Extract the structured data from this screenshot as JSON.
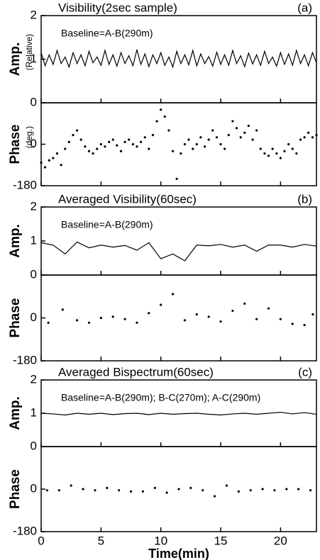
{
  "chart_data": [
    {
      "type": "line",
      "title": "Visibility(2sec sample)",
      "label": "(a)",
      "annotation": "Baseline=A-B(290m)",
      "ylabel": "Amp.",
      "ylabel_unit": "(Relative)",
      "color": "#000000",
      "xlim": [
        0,
        23
      ],
      "ylim": [
        0,
        2
      ],
      "yticks": [
        0,
        1,
        2
      ],
      "x": [
        0,
        0.33,
        0.67,
        1,
        1.33,
        1.67,
        2,
        2.33,
        2.67,
        3,
        3.33,
        3.67,
        4,
        4.33,
        4.67,
        5,
        5.33,
        5.67,
        6,
        6.33,
        6.67,
        7,
        7.33,
        7.67,
        8,
        8.33,
        8.67,
        9,
        9.33,
        9.67,
        10,
        10.33,
        10.67,
        11,
        11.33,
        11.67,
        12,
        12.33,
        12.67,
        13,
        13.33,
        13.67,
        14,
        14.33,
        14.67,
        15,
        15.33,
        15.67,
        16,
        16.33,
        16.67,
        17,
        17.33,
        17.67,
        18,
        18.33,
        18.67,
        19,
        19.33,
        19.67,
        20,
        20.33,
        20.67,
        21,
        21.33,
        21.67,
        22,
        22.33,
        22.67,
        23
      ],
      "values": [
        1.15,
        0.85,
        1.1,
        0.88,
        1.2,
        0.9,
        1.05,
        0.82,
        1.15,
        0.9,
        1.1,
        0.85,
        1.18,
        0.92,
        1.05,
        0.86,
        1.2,
        0.88,
        1.1,
        0.84,
        1.15,
        0.9,
        1.08,
        0.85,
        1.22,
        0.88,
        1.12,
        0.83,
        1.1,
        0.9,
        1.15,
        0.86,
        1.05,
        0.82,
        1.18,
        0.9,
        1.1,
        0.87,
        1.2,
        0.85,
        1.12,
        0.9,
        1.06,
        0.84,
        1.16,
        0.88,
        1.1,
        0.86,
        1.2,
        0.9,
        1.08,
        0.83,
        1.14,
        0.89,
        1.1,
        0.86,
        1.18,
        0.9,
        1.05,
        0.84,
        1.15,
        0.88,
        1.12,
        0.86,
        1.2,
        0.9,
        1.1,
        0.85,
        1.15,
        0.92
      ]
    },
    {
      "type": "scatter",
      "ylabel": "Phase",
      "ylabel_unit": "(deg.)",
      "color": "#000000",
      "xlim": [
        0,
        23
      ],
      "ylim": [
        -180,
        180
      ],
      "yticks": [
        -180,
        0
      ],
      "x": [
        0,
        0.33,
        0.67,
        1,
        1.33,
        1.67,
        2,
        2.33,
        2.67,
        3,
        3.33,
        3.67,
        4,
        4.33,
        4.67,
        5,
        5.33,
        5.67,
        6,
        6.33,
        6.67,
        7,
        7.33,
        7.67,
        8,
        8.33,
        8.67,
        9,
        9.33,
        9.67,
        10,
        10.33,
        10.67,
        11,
        11.33,
        11.67,
        12,
        12.33,
        12.67,
        13,
        13.33,
        13.67,
        14,
        14.33,
        14.67,
        15,
        15.33,
        15.67,
        16,
        16.33,
        16.67,
        17,
        17.33,
        17.67,
        18,
        18.33,
        18.67,
        19,
        19.33,
        19.67,
        20,
        20.33,
        20.67,
        21,
        21.33,
        21.67,
        22,
        22.33,
        22.67,
        23
      ],
      "values": [
        -80,
        -100,
        -70,
        -60,
        -40,
        -90,
        -20,
        10,
        40,
        60,
        20,
        -10,
        -30,
        -40,
        -20,
        0,
        -10,
        10,
        20,
        -5,
        -30,
        10,
        20,
        0,
        -10,
        10,
        30,
        -20,
        40,
        100,
        150,
        120,
        60,
        -30,
        -150,
        -40,
        0,
        20,
        -20,
        0,
        30,
        -10,
        20,
        60,
        30,
        0,
        -20,
        40,
        100,
        70,
        30,
        50,
        80,
        20,
        60,
        -20,
        -40,
        -50,
        -20,
        -40,
        -60,
        -30,
        0,
        -20,
        -40,
        20,
        30,
        50,
        30,
        40
      ]
    },
    {
      "type": "line",
      "title": "Averaged Visibility(60sec)",
      "label": "(b)",
      "annotation": "Baseline=A-B(290m)",
      "ylabel": "Amp.",
      "color": "#000000",
      "xlim": [
        0,
        23
      ],
      "ylim": [
        0,
        2
      ],
      "yticks": [
        0,
        1,
        2
      ],
      "x": [
        0,
        1,
        2,
        3,
        4,
        5,
        6,
        7,
        8,
        9,
        10,
        11,
        12,
        13,
        14,
        15,
        16,
        17,
        18,
        19,
        20,
        21,
        22,
        23
      ],
      "values": [
        0.95,
        0.88,
        0.62,
        0.97,
        0.8,
        0.88,
        0.82,
        0.87,
        0.73,
        0.95,
        0.48,
        0.62,
        0.42,
        0.88,
        0.86,
        0.9,
        0.82,
        0.88,
        0.7,
        0.88,
        0.88,
        0.82,
        0.9,
        0.85
      ]
    },
    {
      "type": "scatter",
      "ylabel": "Phase",
      "color": "#000000",
      "xlim": [
        0,
        23
      ],
      "ylim": [
        -180,
        180
      ],
      "yticks": [
        -180,
        0
      ],
      "x": [
        0.6,
        1.8,
        3,
        4,
        5,
        6,
        7,
        8,
        9,
        10,
        11,
        12,
        13,
        14,
        15,
        16,
        17,
        18,
        19,
        20,
        21,
        22,
        22.7
      ],
      "values": [
        -20,
        35,
        -10,
        -20,
        0,
        5,
        -5,
        -20,
        20,
        55,
        100,
        -10,
        15,
        5,
        -15,
        30,
        60,
        -5,
        40,
        -5,
        -25,
        -30,
        15
      ]
    },
    {
      "type": "line",
      "title": "Averaged Bispectrum(60sec)",
      "label": "(c)",
      "annotation": "Baseline=A-B(290m); B-C(270m); A-C(290m)",
      "ylabel": "Amp.",
      "color": "#000000",
      "xlim": [
        0,
        23
      ],
      "ylim": [
        0,
        2
      ],
      "yticks": [
        0,
        1,
        2
      ],
      "x": [
        0,
        1,
        2,
        3,
        4,
        5,
        6,
        7,
        8,
        9,
        10,
        11,
        12,
        13,
        14,
        15,
        16,
        17,
        18,
        19,
        20,
        21,
        22,
        23
      ],
      "values": [
        1.0,
        0.98,
        0.95,
        1.0,
        0.97,
        1.0,
        0.96,
        0.99,
        1.0,
        0.96,
        1.0,
        0.97,
        0.99,
        1.0,
        0.97,
        0.95,
        0.98,
        1.0,
        0.97,
        1.0,
        1.03,
        0.98,
        1.02,
        0.97
      ]
    },
    {
      "type": "scatter",
      "ylabel": "Phase",
      "xlabel": "Time(min)",
      "color": "#000000",
      "xlim": [
        0,
        23
      ],
      "ylim": [
        -180,
        180
      ],
      "yticks": [
        -180,
        0
      ],
      "xticks": [
        0,
        5,
        10,
        15,
        20
      ],
      "x": [
        0.5,
        1.5,
        2.5,
        3.5,
        4.5,
        5.5,
        6.5,
        7.5,
        8.5,
        9.5,
        10.5,
        11.5,
        12.5,
        13.5,
        14.5,
        15.5,
        16.5,
        17.5,
        18.5,
        19.5,
        20.5,
        21.5,
        22.5
      ],
      "values": [
        -5,
        -5,
        15,
        0,
        -5,
        5,
        -5,
        -10,
        -10,
        5,
        -15,
        0,
        5,
        -5,
        -30,
        15,
        -10,
        -5,
        0,
        -5,
        0,
        0,
        -5
      ]
    }
  ]
}
